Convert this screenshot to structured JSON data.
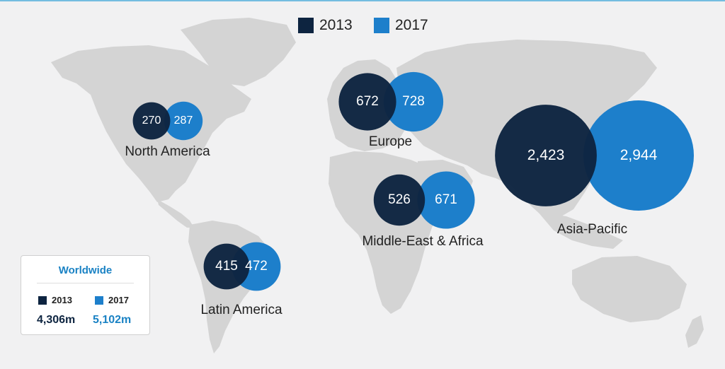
{
  "colors": {
    "series_2013": "#0d2440",
    "series_2017": "#1d7fcb",
    "land": "#d4d4d4",
    "background": "#f1f1f2",
    "accent": "#1a82c4"
  },
  "chart_data": {
    "type": "bubble-map",
    "legend_placement": "top-center",
    "series": [
      {
        "name": "2013",
        "color": "#0d2440"
      },
      {
        "name": "2017",
        "color": "#1d7fcb"
      }
    ],
    "regions": [
      {
        "name": "North America",
        "values": {
          "2013": "270",
          "2017": "287"
        }
      },
      {
        "name": "Europe",
        "values": {
          "2013": "672",
          "2017": "728"
        }
      },
      {
        "name": "Middle-East & Africa",
        "values": {
          "2013": "526",
          "2017": "671"
        }
      },
      {
        "name": "Asia-Pacific",
        "values": {
          "2013": "2,423",
          "2017": "2,944"
        }
      },
      {
        "name": "Latin America",
        "values": {
          "2013": "415",
          "2017": "472"
        }
      }
    ]
  },
  "legend": {
    "items": [
      "2013",
      "2017"
    ]
  },
  "worldwide": {
    "title": "Worldwide",
    "year_2013": "2013",
    "year_2017": "2017",
    "total_2013": "4,306m",
    "total_2017": "5,102m"
  }
}
